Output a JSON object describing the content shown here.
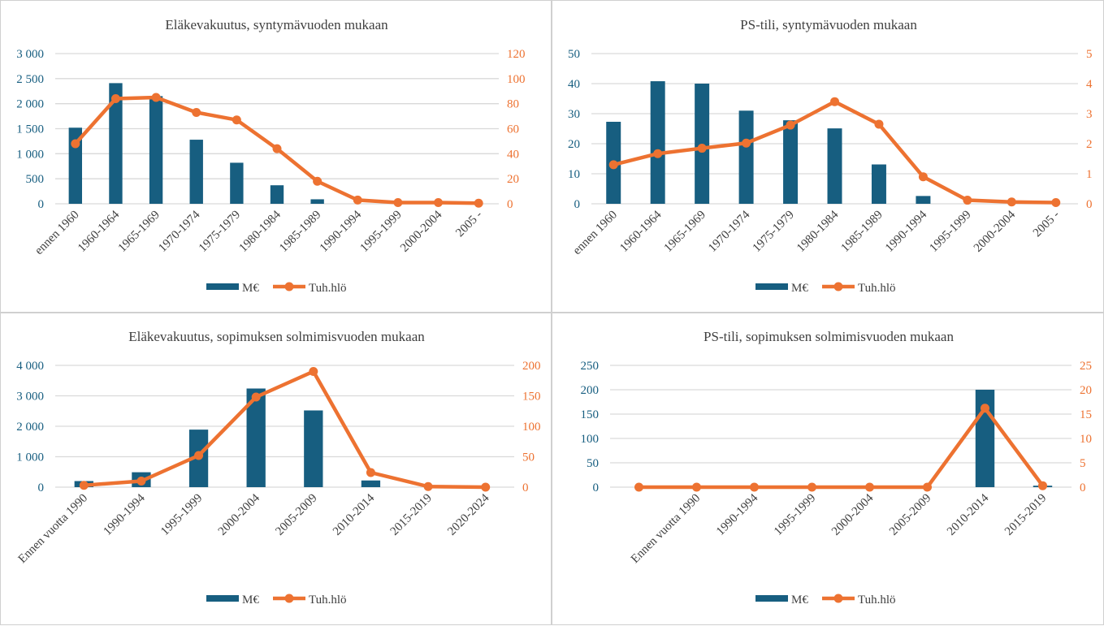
{
  "colors": {
    "bar": "#175E80",
    "line": "#ED7231",
    "grid": "#d9d9d9",
    "left_axis_text": "#175E80",
    "right_axis_text": "#ED7231",
    "title": "#404040"
  },
  "chart_data": [
    {
      "type": "bar+line",
      "title": "Eläkevakuutus,  syntymävuoden  mukaan",
      "categories": [
        "ennen 1960",
        "1960-1964",
        "1965-1969",
        "1970-1974",
        "1975-1979",
        "1980-1984",
        "1985-1989",
        "1990-1994",
        "1995-1999",
        "2000-2004",
        "2005 -"
      ],
      "series": [
        {
          "name": "M€",
          "type": "bar",
          "axis": "left",
          "values": [
            1520,
            2410,
            2150,
            1280,
            820,
            370,
            90,
            0,
            0,
            0,
            0
          ]
        },
        {
          "name": "Tuh.hlö",
          "type": "line",
          "axis": "right",
          "values": [
            48,
            84,
            85,
            73,
            67,
            44,
            18,
            3,
            1,
            1,
            0.5
          ]
        }
      ],
      "left_axis": {
        "range": [
          0,
          3000
        ],
        "ticks": [
          "0",
          "500",
          "1 000",
          "1 500",
          "2 000",
          "2 500",
          "3 000"
        ]
      },
      "right_axis": {
        "range": [
          0,
          120
        ],
        "ticks": [
          "0",
          "20",
          "40",
          "60",
          "80",
          "100",
          "120"
        ]
      },
      "grid": true,
      "legend": "bottom"
    },
    {
      "type": "bar+line",
      "title": "PS-tili, syntymävuoden  mukaan",
      "categories": [
        "ennen 1960",
        "1960-1964",
        "1965-1969",
        "1970-1974",
        "1975-1979",
        "1980-1984",
        "1985-1989",
        "1990-1994",
        "1995-1999",
        "2000-2004",
        "2005 -"
      ],
      "series": [
        {
          "name": "M€",
          "type": "bar",
          "axis": "left",
          "values": [
            27.3,
            40.8,
            40,
            31,
            27.8,
            25.1,
            13.1,
            2.6,
            0,
            0,
            0
          ]
        },
        {
          "name": "Tuh.hlö",
          "type": "line",
          "axis": "right",
          "values": [
            1.3,
            1.67,
            1.85,
            2.02,
            2.62,
            3.4,
            2.65,
            0.9,
            0.12,
            0.06,
            0.04
          ]
        }
      ],
      "left_axis": {
        "range": [
          0,
          50
        ],
        "ticks": [
          "0",
          "10",
          "20",
          "30",
          "40",
          "50"
        ]
      },
      "right_axis": {
        "range": [
          0,
          5
        ],
        "ticks": [
          "0",
          "1",
          "2",
          "3",
          "4",
          "5"
        ]
      },
      "grid": true,
      "legend": "bottom"
    },
    {
      "type": "bar+line",
      "title": "Eläkevakuutus,  sopimuksen  solmimisvuoden  mukaan",
      "categories": [
        "Ennen vuotta 1990",
        "1990-1994",
        "1995-1999",
        "2000-2004",
        "2005-2009",
        "2010-2014",
        "2015-2019",
        "2020-2024"
      ],
      "series": [
        {
          "name": "M€",
          "type": "bar",
          "axis": "left",
          "values": [
            200,
            490,
            1890,
            3240,
            2520,
            220,
            0,
            0
          ]
        },
        {
          "name": "Tuh.hlö",
          "type": "line",
          "axis": "right",
          "values": [
            3,
            10,
            52,
            148,
            190,
            24,
            1,
            0
          ]
        }
      ],
      "left_axis": {
        "range": [
          0,
          4000
        ],
        "ticks": [
          "0",
          "1 000",
          "2 000",
          "3 000",
          "4 000"
        ]
      },
      "right_axis": {
        "range": [
          0,
          200
        ],
        "ticks": [
          "0",
          "50",
          "100",
          "150",
          "200"
        ]
      },
      "grid": true,
      "legend": "bottom"
    },
    {
      "type": "bar+line",
      "title": "PS-tili, sopimuksen  solmimisvuoden  mukaan",
      "categories": [
        "",
        "Ennen vuotta 1990",
        "1990-1994",
        "1995-1999",
        "2000-2004",
        "2005-2009",
        "2010-2014",
        "2015-2019"
      ],
      "series": [
        {
          "name": "M€",
          "type": "bar",
          "axis": "left",
          "values": [
            0,
            0,
            0,
            0,
            0,
            0,
            200,
            3
          ]
        },
        {
          "name": "Tuh.hlö",
          "type": "line",
          "axis": "right",
          "values": [
            0,
            0,
            0,
            0,
            0,
            0,
            16.2,
            0.3
          ]
        }
      ],
      "left_axis": {
        "range": [
          0,
          250
        ],
        "ticks": [
          "0",
          "50",
          "100",
          "150",
          "200",
          "250"
        ]
      },
      "right_axis": {
        "range": [
          0,
          25
        ],
        "ticks": [
          "0",
          "5",
          "10",
          "15",
          "20",
          "25"
        ]
      },
      "grid": true,
      "legend": "bottom"
    }
  ]
}
